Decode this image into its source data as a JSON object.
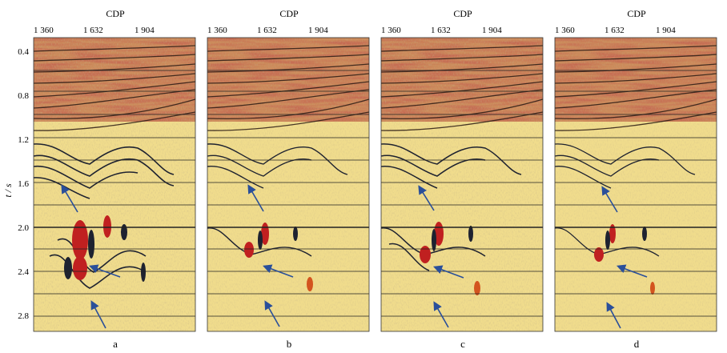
{
  "figure": {
    "y_axis_label": "t / s",
    "y_ticks": [
      {
        "value": 0.4,
        "label": "0.4"
      },
      {
        "value": 0.8,
        "label": "0.8"
      },
      {
        "value": 1.2,
        "label": "1.2"
      },
      {
        "value": 1.6,
        "label": "1.6"
      },
      {
        "value": 2.0,
        "label": "2.0"
      },
      {
        "value": 2.4,
        "label": "2.4"
      },
      {
        "value": 2.8,
        "label": "2.8"
      }
    ],
    "x_ticks": [
      {
        "value": 1360,
        "label": "1 360"
      },
      {
        "value": 1632,
        "label": "1 632"
      },
      {
        "value": 1904,
        "label": "1 904"
      }
    ],
    "panels": [
      {
        "id": "a",
        "top_label": "CDP",
        "panel_label": "a"
      },
      {
        "id": "b",
        "top_label": "CDP",
        "panel_label": "b"
      },
      {
        "id": "c",
        "top_label": "CDP",
        "panel_label": "c"
      },
      {
        "id": "d",
        "top_label": "CDP",
        "panel_label": "d"
      }
    ],
    "colors": {
      "background": "#f0dc8c",
      "strong_positive": "#a8231b",
      "positive": "#d3541f",
      "negative": "#1e2230",
      "blue": "#5a7fb8",
      "arrow": "#2a4f9a",
      "grid": "#222222"
    }
  }
}
